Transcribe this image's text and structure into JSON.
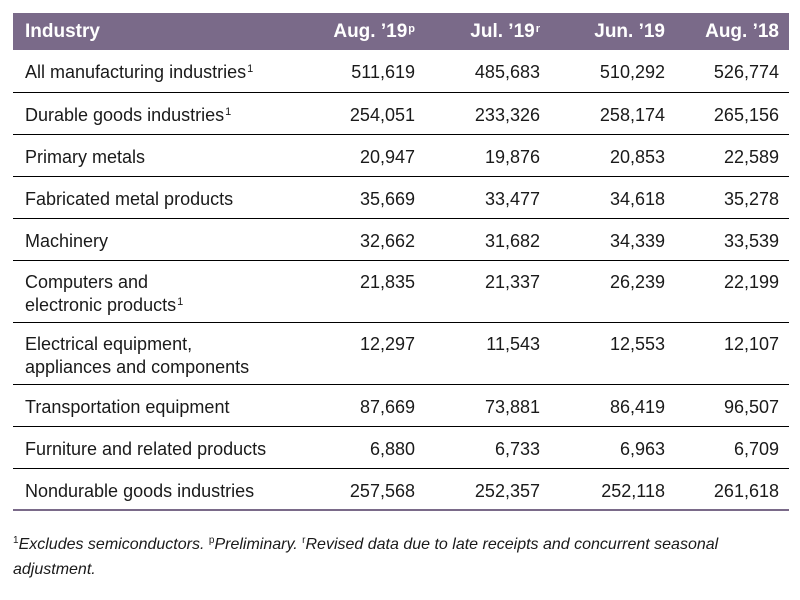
{
  "table": {
    "headers": {
      "industry": "Industry",
      "aug19": "Aug. ’19",
      "aug19_mark": "p",
      "jul19": "Jul. ’19",
      "jul19_mark": "r",
      "jun19": "Jun. ’19",
      "aug18": "Aug. ’18"
    },
    "rows": [
      {
        "label_lines": [
          "All manufacturing industries"
        ],
        "mark": "1",
        "values": [
          "511,619",
          "485,683",
          "510,292",
          "526,774"
        ]
      },
      {
        "label_lines": [
          "Durable goods industries"
        ],
        "mark": "1",
        "values": [
          "254,051",
          "233,326",
          "258,174",
          "265,156"
        ]
      },
      {
        "label_lines": [
          "Primary metals"
        ],
        "mark": "",
        "values": [
          "20,947",
          "19,876",
          "20,853",
          "22,589"
        ]
      },
      {
        "label_lines": [
          "Fabricated metal products"
        ],
        "mark": "",
        "values": [
          "35,669",
          "33,477",
          "34,618",
          "35,278"
        ]
      },
      {
        "label_lines": [
          "Machinery"
        ],
        "mark": "",
        "values": [
          "32,662",
          "31,682",
          "34,339",
          "33,539"
        ]
      },
      {
        "label_lines": [
          "Computers and",
          "electronic products"
        ],
        "mark": "1",
        "values": [
          "21,835",
          "21,337",
          "26,239",
          "22,199"
        ]
      },
      {
        "label_lines": [
          "Electrical equipment,",
          "appliances and components"
        ],
        "mark": "",
        "values": [
          "12,297",
          "11,543",
          "12,553",
          "12,107"
        ]
      },
      {
        "label_lines": [
          "Transportation equipment"
        ],
        "mark": "",
        "values": [
          "87,669",
          "73,881",
          "86,419",
          "96,507"
        ]
      },
      {
        "label_lines": [
          "Furniture and related products"
        ],
        "mark": "",
        "values": [
          "6,880",
          "6,733",
          "6,963",
          "6,709"
        ]
      },
      {
        "label_lines": [
          "Nondurable goods industries"
        ],
        "mark": "",
        "values": [
          "257,568",
          "252,357",
          "252,118",
          "261,618"
        ]
      }
    ]
  },
  "footnote": {
    "mark1": "1",
    "text1": "Excludes semiconductors. ",
    "mark_p": "p",
    "text_p": "Preliminary. ",
    "mark_r": "r",
    "text_r": "Revised data due to late receipts and concurrent seasonal adjustment."
  }
}
